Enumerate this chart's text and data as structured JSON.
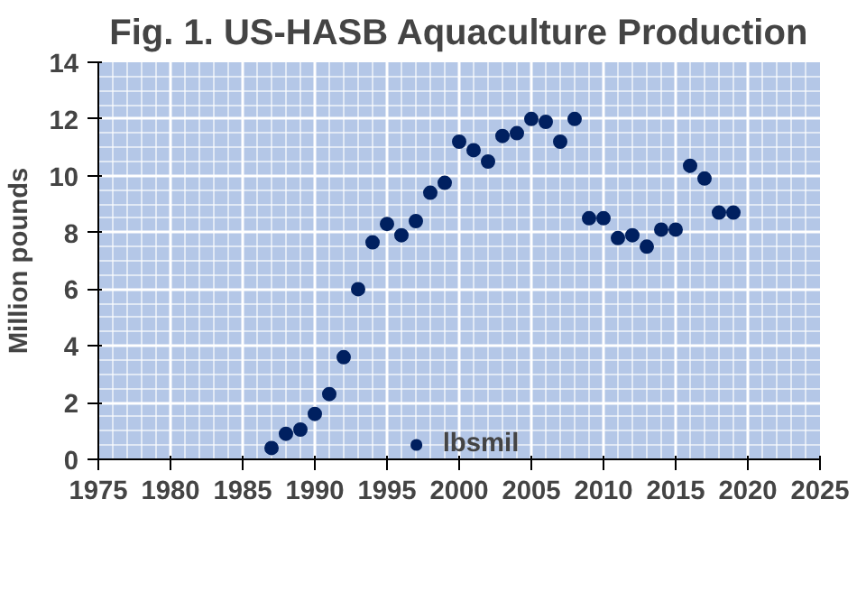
{
  "chart_data": {
    "type": "scatter",
    "title": "Fig. 1. US-HASB Aquaculture Production",
    "ylabel": "Million pounds",
    "x": [
      1987,
      1988,
      1989,
      1990,
      1991,
      1992,
      1993,
      1994,
      1995,
      1996,
      1997,
      1998,
      1999,
      2000,
      2001,
      2002,
      2003,
      2004,
      2005,
      2006,
      2007,
      2008,
      2009,
      2010,
      2011,
      2012,
      2013,
      2014,
      2015,
      2016,
      2017,
      2018,
      2019
    ],
    "series": [
      {
        "name": "lbsmil",
        "color": "#002060",
        "values": [
          0.4,
          0.9,
          1.05,
          1.6,
          2.3,
          3.6,
          6.0,
          7.65,
          8.3,
          7.9,
          8.4,
          9.4,
          9.75,
          11.2,
          10.9,
          10.5,
          11.4,
          11.5,
          12.0,
          11.9,
          11.2,
          12.0,
          8.5,
          8.5,
          7.8,
          7.9,
          7.5,
          8.1,
          8.1,
          10.35,
          9.9,
          8.7,
          8.7
        ]
      }
    ],
    "xlim": [
      1975,
      2025
    ],
    "xticks": [
      1975,
      1980,
      1985,
      1990,
      1995,
      2000,
      2005,
      2010,
      2015,
      2020,
      2025
    ],
    "ylim": [
      0,
      14
    ],
    "yticks": [
      0,
      2,
      4,
      6,
      8,
      10,
      12,
      14
    ],
    "grid": true,
    "legend": "bottom",
    "marker": "circle"
  }
}
